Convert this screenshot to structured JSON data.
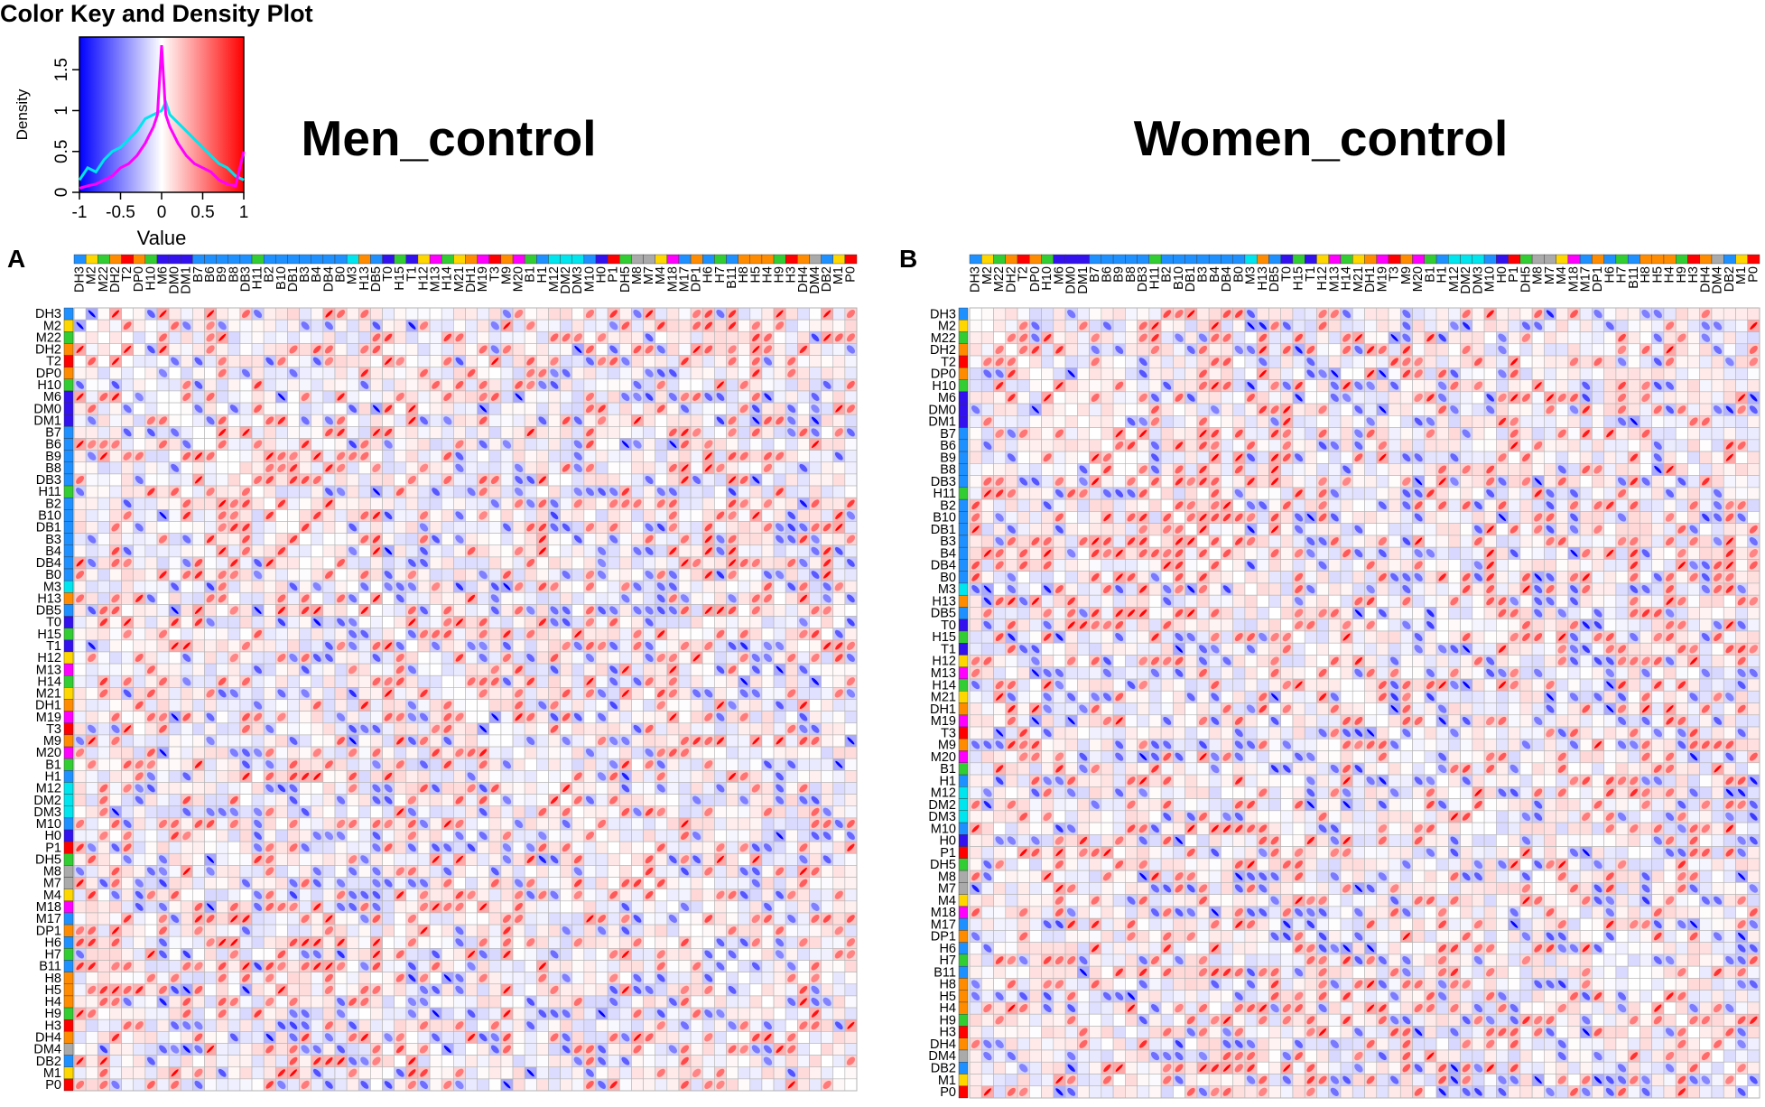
{
  "colors": {
    "low": "#0000ff",
    "mid": "#ffffff",
    "high": "#ff0000",
    "density_men": "#ff00ff",
    "density_women": "#00e5ee",
    "grid_line": "#b3b3b3"
  },
  "chart_data": [
    {
      "type": "line",
      "title": "Color Key and Density Plot",
      "xlabel": "Value",
      "ylabel": "Density",
      "xlim": [
        -1,
        1
      ],
      "ylim": [
        0,
        1.9
      ],
      "x_ticks": [
        "-1",
        "-0.5",
        "0",
        "0.5",
        "1"
      ],
      "y_ticks": [
        "0",
        "0.5",
        "1",
        "1.5"
      ],
      "x_tick_values": [
        -1,
        -0.5,
        0,
        0.5,
        1
      ],
      "y_tick_values": [
        0,
        0.5,
        1,
        1.5
      ],
      "series": [
        {
          "name": "Men_control",
          "x": [
            -1,
            -0.9,
            -0.8,
            -0.7,
            -0.6,
            -0.5,
            -0.4,
            -0.3,
            -0.2,
            -0.1,
            -0.05,
            0,
            0.05,
            0.1,
            0.2,
            0.3,
            0.4,
            0.5,
            0.6,
            0.7,
            0.8,
            0.9,
            1
          ],
          "y": [
            0.05,
            0.08,
            0.1,
            0.15,
            0.2,
            0.3,
            0.35,
            0.45,
            0.6,
            0.8,
            0.95,
            1.8,
            0.95,
            0.8,
            0.6,
            0.45,
            0.35,
            0.3,
            0.25,
            0.15,
            0.1,
            0.08,
            0.5
          ]
        },
        {
          "name": "Women_control",
          "x": [
            -1,
            -0.9,
            -0.8,
            -0.7,
            -0.6,
            -0.5,
            -0.4,
            -0.3,
            -0.2,
            -0.1,
            0,
            0.05,
            0.1,
            0.2,
            0.3,
            0.4,
            0.5,
            0.6,
            0.7,
            0.8,
            0.9,
            1
          ],
          "y": [
            0.15,
            0.3,
            0.25,
            0.4,
            0.5,
            0.55,
            0.65,
            0.75,
            0.9,
            0.95,
            1.0,
            1.1,
            0.95,
            0.85,
            0.75,
            0.65,
            0.55,
            0.45,
            0.35,
            0.3,
            0.2,
            0.15
          ]
        }
      ]
    },
    {
      "type": "heatmap",
      "panel": "A",
      "title": "Men_control",
      "value_range": [
        -1,
        1
      ],
      "labels": [
        "DH3",
        "M2",
        "M22",
        "DH2",
        "T2",
        "DP0",
        "H10",
        "M6",
        "DM0",
        "DM1",
        "B7",
        "B6",
        "B9",
        "B8",
        "DB3",
        "H11",
        "B2",
        "B10",
        "DB1",
        "B3",
        "B4",
        "DB4",
        "B0",
        "M3",
        "H13",
        "DB5",
        "T0",
        "H15",
        "T1",
        "H12",
        "M13",
        "H14",
        "M21",
        "DH1",
        "M19",
        "T3",
        "M9",
        "M20",
        "B1",
        "H1",
        "M12",
        "DM2",
        "DM3",
        "M10",
        "H0",
        "P1",
        "DH5",
        "M8",
        "M7",
        "M4",
        "M18",
        "M17",
        "DP1",
        "H6",
        "H7",
        "B11",
        "H8",
        "H5",
        "H4",
        "H9",
        "H3",
        "DH4",
        "DM4",
        "DB2",
        "M1",
        "P0"
      ],
      "group_colors": [
        "#1e90ff",
        "#ffd700",
        "#32cd32",
        "#ff8c00",
        "#ff0000",
        "#ff8c00",
        "#32cd32",
        "#3311ee",
        "#3311ee",
        "#3311ee",
        "#1e90ff",
        "#1e90ff",
        "#1e90ff",
        "#1e90ff",
        "#1e90ff",
        "#32cd32",
        "#1e90ff",
        "#1e90ff",
        "#1e90ff",
        "#1e90ff",
        "#1e90ff",
        "#1e90ff",
        "#1e90ff",
        "#00e5ee",
        "#ff8c00",
        "#1e90ff",
        "#3311ee",
        "#32cd32",
        "#3311ee",
        "#ffd700",
        "#ff00ff",
        "#32cd32",
        "#ffd700",
        "#ff8c00",
        "#ff00ff",
        "#ff0000",
        "#ff8c00",
        "#ff00ff",
        "#32cd32",
        "#1e90ff",
        "#00e5ee",
        "#00e5ee",
        "#00e5ee",
        "#1e90ff",
        "#3311ee",
        "#ff0000",
        "#32cd32",
        "#aaaaaa",
        "#aaaaaa",
        "#ffd700",
        "#ff00ff",
        "#1e90ff",
        "#ff8c00",
        "#1e90ff",
        "#32cd32",
        "#1e90ff",
        "#ff8c00",
        "#ff8c00",
        "#ff8c00",
        "#32cd32",
        "#ff0000",
        "#ff8c00",
        "#aaaaaa",
        "#1e90ff",
        "#ffd700",
        "#ff0000"
      ],
      "note": "66x66 symmetric correlation matrix; individual cell values are shown only as color shading and are not legible at this resolution."
    },
    {
      "type": "heatmap",
      "panel": "B",
      "title": "Women_control",
      "value_range": [
        -1,
        1
      ],
      "labels": [
        "DH3",
        "M2",
        "M22",
        "DH2",
        "T2",
        "DP0",
        "H10",
        "M6",
        "DM0",
        "DM1",
        "B7",
        "B6",
        "B9",
        "B8",
        "DB3",
        "H11",
        "B2",
        "B10",
        "DB1",
        "B3",
        "B4",
        "DB4",
        "B0",
        "M3",
        "H13",
        "DB5",
        "T0",
        "H15",
        "T1",
        "H12",
        "M13",
        "H14",
        "M21",
        "DH1",
        "M19",
        "T3",
        "M9",
        "M20",
        "B1",
        "H1",
        "M12",
        "DM2",
        "DM3",
        "M10",
        "H0",
        "P1",
        "DH5",
        "M8",
        "M7",
        "M4",
        "M18",
        "M17",
        "DP1",
        "H6",
        "H7",
        "B11",
        "H8",
        "H5",
        "H4",
        "H9",
        "H3",
        "DH4",
        "DM4",
        "DB2",
        "M1",
        "P0"
      ],
      "group_colors": [
        "#1e90ff",
        "#ffd700",
        "#32cd32",
        "#ff8c00",
        "#ff0000",
        "#ff8c00",
        "#32cd32",
        "#3311ee",
        "#3311ee",
        "#3311ee",
        "#1e90ff",
        "#1e90ff",
        "#1e90ff",
        "#1e90ff",
        "#1e90ff",
        "#32cd32",
        "#1e90ff",
        "#1e90ff",
        "#1e90ff",
        "#1e90ff",
        "#1e90ff",
        "#1e90ff",
        "#1e90ff",
        "#00e5ee",
        "#ff8c00",
        "#1e90ff",
        "#3311ee",
        "#32cd32",
        "#3311ee",
        "#ffd700",
        "#ff00ff",
        "#32cd32",
        "#ffd700",
        "#ff8c00",
        "#ff00ff",
        "#ff0000",
        "#ff8c00",
        "#ff00ff",
        "#32cd32",
        "#1e90ff",
        "#00e5ee",
        "#00e5ee",
        "#00e5ee",
        "#1e90ff",
        "#3311ee",
        "#ff0000",
        "#32cd32",
        "#aaaaaa",
        "#aaaaaa",
        "#ffd700",
        "#ff00ff",
        "#1e90ff",
        "#ff8c00",
        "#1e90ff",
        "#32cd32",
        "#1e90ff",
        "#ff8c00",
        "#ff8c00",
        "#ff8c00",
        "#32cd32",
        "#ff0000",
        "#ff8c00",
        "#aaaaaa",
        "#1e90ff",
        "#ffd700",
        "#ff0000"
      ],
      "note": "66x66 symmetric correlation matrix; individual cell values are shown only as color shading and are not legible at this resolution."
    }
  ]
}
